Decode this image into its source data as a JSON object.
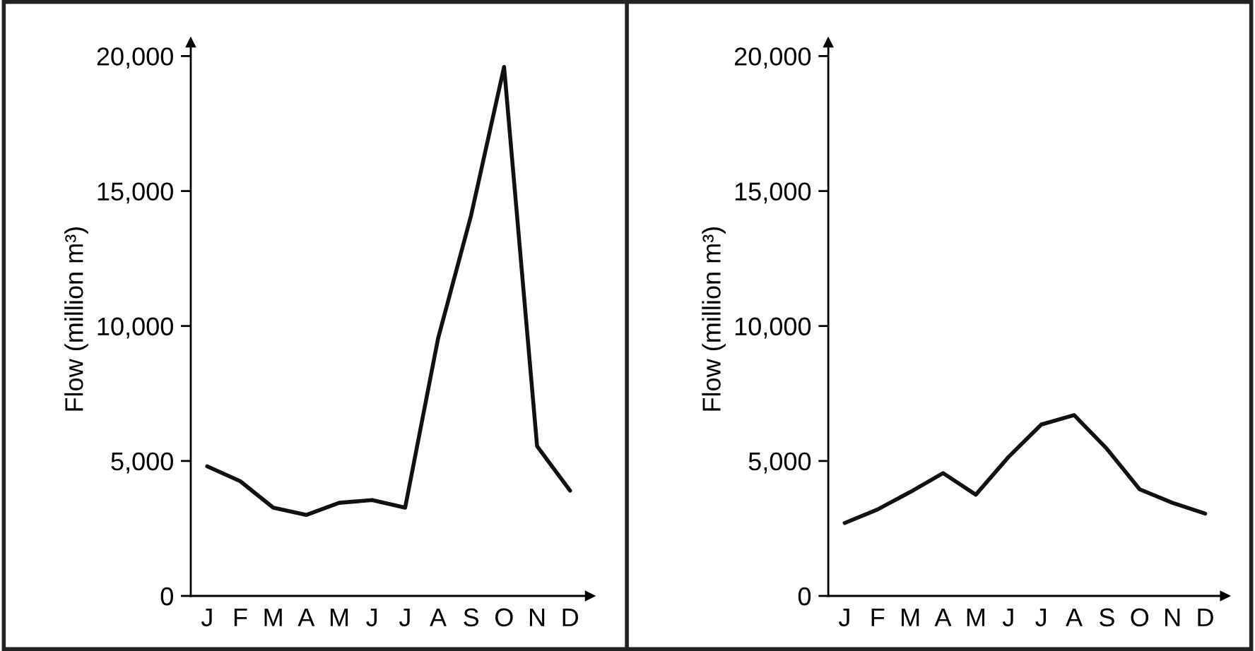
{
  "chart_data": [
    {
      "type": "line",
      "ylabel": "Flow (million m³)",
      "ylim": [
        0,
        20500
      ],
      "categories": [
        "J",
        "F",
        "M",
        "A",
        "M",
        "J",
        "J",
        "A",
        "S",
        "O",
        "N",
        "D"
      ],
      "yticks": [
        0,
        {
          "value": 5000,
          "label": "5,000"
        },
        {
          "value": 10000,
          "label": "10,000"
        },
        {
          "value": 15000,
          "label": "15,000"
        },
        {
          "value": 20000,
          "label": "20,000"
        }
      ],
      "grid": false,
      "marker": "none",
      "line_style": "solid",
      "series": [
        {
          "color": "#111111",
          "values": [
            4800,
            4250,
            3270,
            3000,
            3450,
            3550,
            3270,
            9550,
            14100,
            19600,
            5550,
            3900
          ]
        }
      ]
    },
    {
      "type": "line",
      "ylabel": "Flow (million m³)",
      "ylim": [
        0,
        20500
      ],
      "categories": [
        "J",
        "F",
        "M",
        "A",
        "M",
        "J",
        "J",
        "A",
        "S",
        "O",
        "N",
        "D"
      ],
      "yticks": [
        0,
        {
          "value": 5000,
          "label": "5,000"
        },
        {
          "value": 10000,
          "label": "10,000"
        },
        {
          "value": 15000,
          "label": "15,000"
        },
        {
          "value": 20000,
          "label": "20,000"
        }
      ],
      "grid": false,
      "marker": "none",
      "line_style": "solid",
      "series": [
        {
          "color": "#111111",
          "values": [
            2700,
            3200,
            3850,
            4550,
            3750,
            5150,
            6350,
            6700,
            5450,
            3950,
            3450,
            3050
          ]
        }
      ]
    }
  ]
}
